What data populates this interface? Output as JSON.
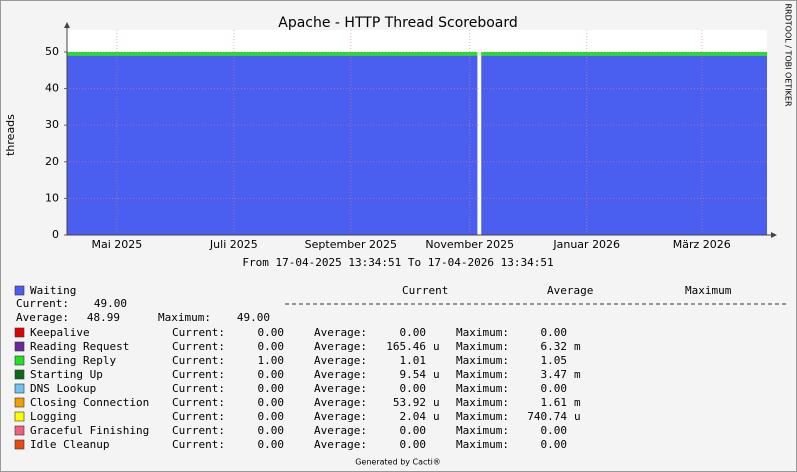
{
  "chart_data": {
    "type": "stacked-area",
    "title": "Apache -  HTTP  Thread Scoreboard",
    "subtitle": "From 17-04-2025 13:34:51 To 17-04-2026 13:34:51",
    "y_label": "threads",
    "side_note": "RRDTOOL / TOBI OETIKER",
    "footer": "Generated by Cacti®",
    "x": [
      0,
      60,
      120,
      180,
      214,
      215,
      216,
      270,
      330,
      365
    ],
    "xlim": [
      0,
      365
    ],
    "xticks": [
      {
        "value": 26,
        "label": "Mai 2025"
      },
      {
        "value": 87,
        "label": "Juli 2025"
      },
      {
        "value": 148,
        "label": "September 2025"
      },
      {
        "value": 210,
        "label": "November 2025"
      },
      {
        "value": 271,
        "label": "Januar 2026"
      },
      {
        "value": 331,
        "label": "März 2026"
      }
    ],
    "ylim": [
      0,
      56
    ],
    "yticks": [
      0,
      10,
      20,
      30,
      40,
      50
    ],
    "grid": true,
    "legend_headers": [
      "Current",
      "Average",
      "Maximum"
    ],
    "stat_labels": {
      "current": "Current:",
      "average": "Average:",
      "maximum": "Maximum:"
    },
    "series": [
      {
        "name": "Waiting",
        "color": "#4a5ef0",
        "values": [
          49,
          49,
          49,
          49,
          49,
          null,
          49,
          49,
          49,
          49
        ],
        "current": "49.00",
        "average": "48.99",
        "maximum": "49.00"
      },
      {
        "name": "Keepalive",
        "color": "#e00000",
        "values": [
          0,
          0,
          0,
          0,
          0,
          null,
          0,
          0,
          0,
          0
        ],
        "current": "0.00",
        "average": "0.00",
        "maximum": "0.00"
      },
      {
        "name": "Reading Request",
        "color": "#6a2a9a",
        "values": [
          0,
          0,
          0,
          0,
          0,
          null,
          0,
          0,
          0,
          0
        ],
        "current": "0.00",
        "average": "165.46",
        "average_unit": "u",
        "maximum": "6.32",
        "maximum_unit": "m"
      },
      {
        "name": "Sending Reply",
        "color": "#22e022",
        "values": [
          1,
          1,
          1,
          1,
          1,
          null,
          1,
          1,
          1,
          1
        ],
        "current": "1.00",
        "average": "1.01",
        "maximum": "1.05"
      },
      {
        "name": "Starting Up",
        "color": "#0a6a1a",
        "values": [
          0,
          0,
          0,
          0,
          0,
          null,
          0,
          0,
          0,
          0
        ],
        "current": "0.00",
        "average": "9.54",
        "average_unit": "u",
        "maximum": "3.47",
        "maximum_unit": "m"
      },
      {
        "name": "DNS Lookup",
        "color": "#6ec3f0",
        "values": [
          0,
          0,
          0,
          0,
          0,
          null,
          0,
          0,
          0,
          0
        ],
        "current": "0.00",
        "average": "0.00",
        "maximum": "0.00"
      },
      {
        "name": "Closing Connection",
        "color": "#f0a000",
        "values": [
          0,
          0,
          0,
          0,
          0,
          null,
          0,
          0,
          0,
          0
        ],
        "current": "0.00",
        "average": "53.92",
        "average_unit": "u",
        "maximum": "1.61",
        "maximum_unit": "m"
      },
      {
        "name": "Logging",
        "color": "#ffff00",
        "values": [
          0,
          0,
          0,
          0,
          0,
          null,
          0,
          0,
          0,
          0
        ],
        "current": "0.00",
        "average": "2.04",
        "average_unit": "u",
        "maximum": "740.74",
        "maximum_unit": "u"
      },
      {
        "name": "Graceful Finishing",
        "color": "#f06080",
        "values": [
          0,
          0,
          0,
          0,
          0,
          null,
          0,
          0,
          0,
          0
        ],
        "current": "0.00",
        "average": "0.00",
        "maximum": "0.00"
      },
      {
        "name": "Idle Cleanup",
        "color": "#e84a10",
        "values": [
          0,
          0,
          0,
          0,
          0,
          null,
          0,
          0,
          0,
          0
        ],
        "current": "0.00",
        "average": "0.00",
        "maximum": "0.00"
      }
    ]
  }
}
